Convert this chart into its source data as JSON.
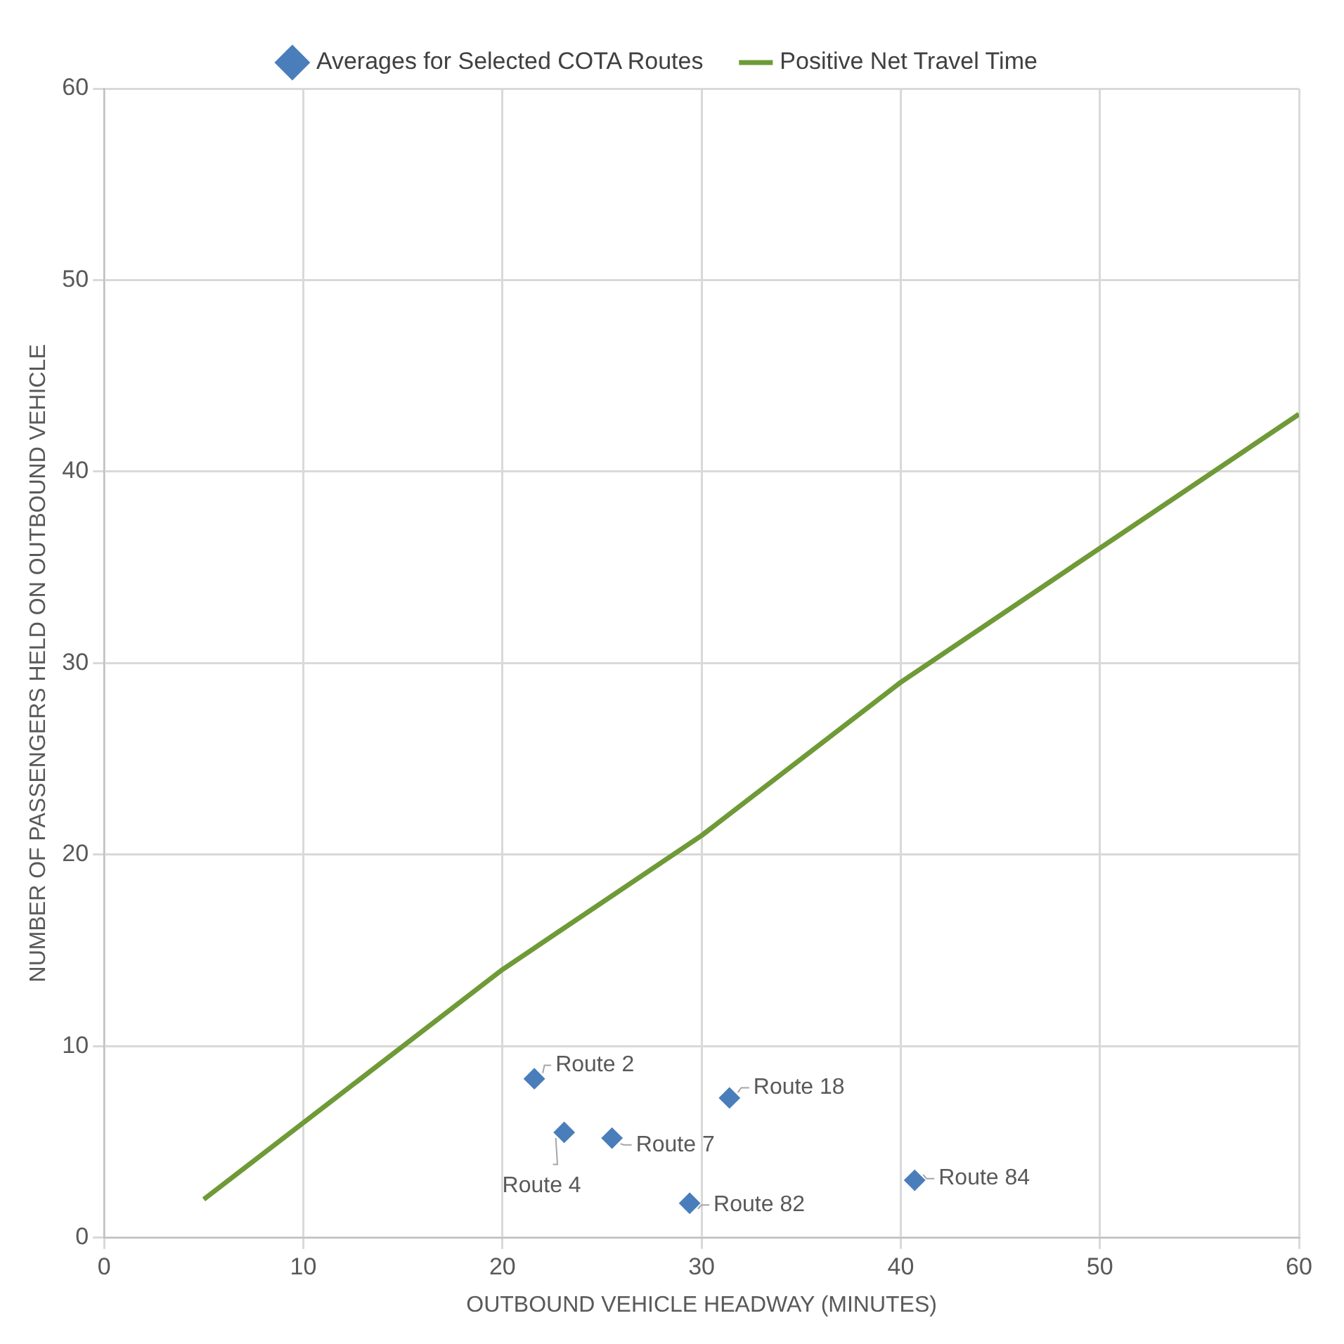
{
  "chart_data": {
    "type": "scatter",
    "xlabel": "OUTBOUND VEHICLE HEADWAY (MINUTES)",
    "ylabel": "NUMBER OF PASSENGERS HELD ON OUTBOUND VEHICLE",
    "series": [
      {
        "name": "Averages for Selected COTA Routes",
        "color": "#4a7ebb",
        "marker": "diamond",
        "x": [
          21.6,
          23.1,
          25.5,
          31.4,
          29.4,
          40.7
        ],
        "values": [
          8.3,
          5.5,
          5.2,
          7.3,
          1.8,
          3.0
        ]
      },
      {
        "name": "Positive Net Travel Time",
        "type": "line",
        "color": "#6f9a37",
        "marker": "none",
        "line_style": "solid",
        "x": [
          5,
          10,
          20,
          30,
          40,
          50,
          60
        ],
        "values": [
          2,
          6,
          14,
          21,
          29,
          36,
          43
        ]
      }
    ],
    "annotations": [
      {
        "text": "Route 2",
        "x": 21.6,
        "y": 8.3
      },
      {
        "text": "Route 4",
        "x": 23.1,
        "y": 5.5
      },
      {
        "text": "Route 7",
        "x": 25.5,
        "y": 5.2
      },
      {
        "text": "Route 18",
        "x": 31.4,
        "y": 7.3
      },
      {
        "text": "Route 82",
        "x": 29.4,
        "y": 1.8
      },
      {
        "text": "Route 84",
        "x": 40.7,
        "y": 3.0
      }
    ],
    "xlim": [
      0,
      60
    ],
    "xticks": [
      0,
      10,
      20,
      30,
      40,
      50,
      60
    ],
    "ylim": [
      0,
      60
    ],
    "yticks": [
      0,
      10,
      20,
      30,
      40,
      50,
      60
    ],
    "grid": true,
    "legend": "top"
  }
}
